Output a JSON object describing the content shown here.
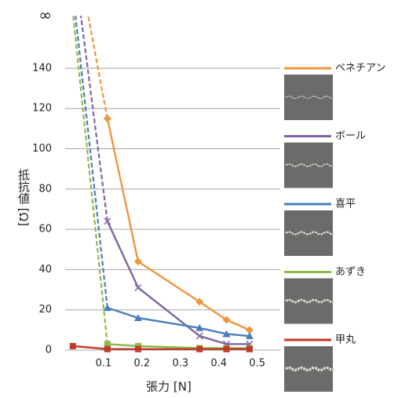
{
  "chart_data": {
    "type": "line",
    "xlabel": "張力 [N]",
    "ylabel": "抵抗値 [Ω]",
    "xlim": [
      0,
      0.56
    ],
    "xticks": [
      0.1,
      0.2,
      0.3,
      0.4,
      0.5
    ],
    "ylim": [
      0,
      170
    ],
    "yticks": [
      0,
      20,
      40,
      60,
      80,
      100,
      120,
      140,
      {
        "value": 166,
        "label": "∞"
      }
    ],
    "grid": true,
    "series": [
      {
        "name": "ベネチアン",
        "color": "#f0953f",
        "marker": "diamond",
        "x": [
          0.11,
          0.19,
          0.35,
          0.42,
          0.48
        ],
        "values": [
          115,
          44,
          24,
          15,
          10
        ],
        "asymptote_x": 0.06
      },
      {
        "name": "ボール",
        "color": "#8064a2",
        "marker": "cross",
        "x": [
          0.11,
          0.19,
          0.35,
          0.42,
          0.48
        ],
        "values": [
          64,
          31,
          7,
          3,
          3
        ],
        "asymptote_x": 0.041
      },
      {
        "name": "喜平",
        "color": "#4a7ebb",
        "marker": "triangle",
        "x": [
          0.11,
          0.19,
          0.35,
          0.42,
          0.48
        ],
        "values": [
          21,
          16,
          11,
          8,
          7
        ],
        "asymptote_x": 0.027
      },
      {
        "name": "あずき",
        "color": "#8cba4a",
        "marker": "square",
        "x": [
          0.11,
          0.19,
          0.35,
          0.42,
          0.48
        ],
        "values": [
          3,
          2,
          1,
          1,
          1
        ],
        "asymptote_x": 0.021
      },
      {
        "name": "甲丸",
        "color": "#c0392b",
        "marker": "square",
        "x": [
          0.02,
          0.11,
          0.19,
          0.35,
          0.42,
          0.48
        ],
        "values": [
          2,
          0.5,
          0.5,
          0.5,
          0.5,
          0.5
        ]
      }
    ]
  }
}
